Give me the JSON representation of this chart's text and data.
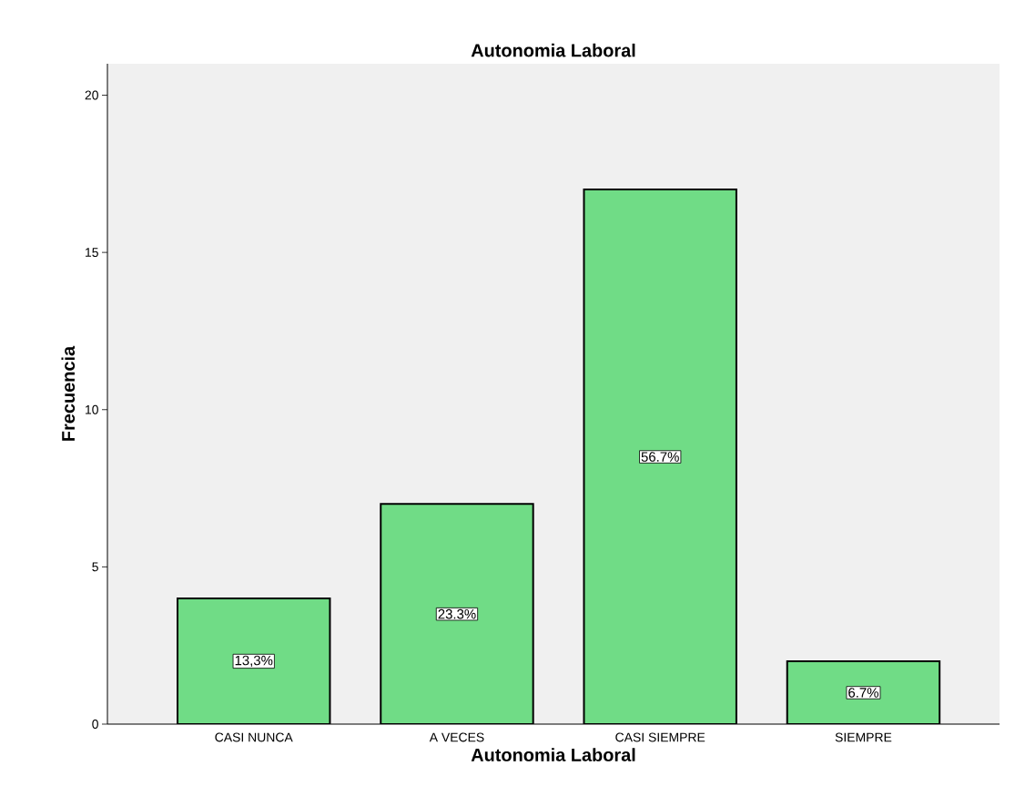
{
  "chart_data": {
    "type": "bar",
    "title": "Autonomia Laboral",
    "xlabel": "Autonomia Laboral",
    "ylabel": "Frecuencia",
    "categories": [
      "CASI NUNCA",
      "A VECES",
      "CASI SIEMPRE",
      "SIEMPRE"
    ],
    "values": [
      4,
      7,
      17,
      2
    ],
    "annotations": [
      "13,3%",
      "23.3%",
      "56.7%",
      "6.7%"
    ],
    "color": "#70dc86",
    "ylim": [
      0,
      21
    ],
    "yticks": [
      0,
      5,
      10,
      15,
      20
    ]
  }
}
